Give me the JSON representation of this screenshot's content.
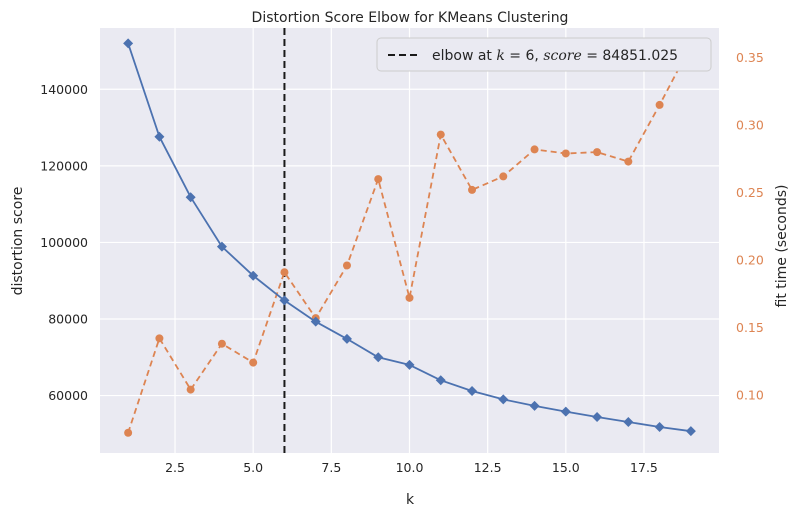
{
  "chart_data": {
    "type": "line",
    "title": "Distortion Score Elbow for KMeans Clustering",
    "xlabel": "k",
    "ylabel": "distortion score",
    "ylabel_right": "fit time (seconds)",
    "xlim": [
      0.1,
      19.9
    ],
    "ylim": [
      45000,
      156000
    ],
    "ylim_right": [
      0.057,
      0.372
    ],
    "x_ticks": [
      2.5,
      5.0,
      7.5,
      10.0,
      12.5,
      15.0,
      17.5
    ],
    "x_tick_labels": [
      "2.5",
      "5.0",
      "7.5",
      "10.0",
      "12.5",
      "15.0",
      "17.5"
    ],
    "y_ticks": [
      60000,
      80000,
      100000,
      120000,
      140000
    ],
    "y_tick_labels": [
      "60000",
      "80000",
      "100000",
      "120000",
      "140000"
    ],
    "y_ticks_right": [
      0.1,
      0.15,
      0.2,
      0.25,
      0.3,
      0.35
    ],
    "y_tick_labels_right": [
      "0.10",
      "0.15",
      "0.20",
      "0.25",
      "0.30",
      "0.35"
    ],
    "grid": true,
    "legend_position": "top-right",
    "x": [
      1,
      2,
      3,
      4,
      5,
      6,
      7,
      8,
      9,
      10,
      11,
      12,
      13,
      14,
      15,
      16,
      17,
      18,
      19
    ],
    "series": [
      {
        "axis": "left",
        "color": "#4c72b0",
        "marker": "diamond",
        "values": [
          152000,
          127600,
          111800,
          98900,
          91300,
          84851,
          79300,
          74800,
          70000,
          68000,
          64000,
          61200,
          59000,
          57300,
          55800,
          54400,
          53100,
          51800,
          50700
        ]
      },
      {
        "axis": "right",
        "color": "#dd8452",
        "marker": "circle",
        "dashed": true,
        "values": [
          0.072,
          0.142,
          0.104,
          0.138,
          0.124,
          0.191,
          0.157,
          0.196,
          0.26,
          0.172,
          0.293,
          0.252,
          0.262,
          0.282,
          0.279,
          0.28,
          0.273,
          0.315,
          0.359
        ]
      }
    ],
    "elbow": {
      "k": 6,
      "legend_text_prefix": "elbow at ",
      "k_symbol": "k",
      "k_value": " = 6, ",
      "score_symbol": "score",
      "score_value": " = 84851.025",
      "line_color": "#1a1a1a"
    },
    "colors": {
      "plot_background": "#eaeaf2",
      "grid": "#ffffff",
      "right_axis_text": "#dd8452"
    }
  }
}
